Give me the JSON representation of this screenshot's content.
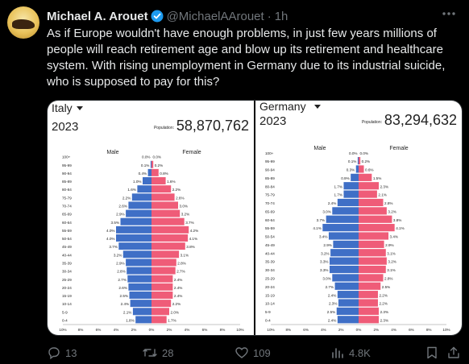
{
  "author": {
    "name": "Michael A. Arouet",
    "handle": "@MichaelAArouet",
    "time": "1h"
  },
  "tweet": {
    "text": "As if Europe wouldn't have enough problems, in just few years millions of people will reach retirement age and blow up its retirement and healthcare system. With rising unemployment in Germany due to its industrial suicide, who is supposed to pay for this?"
  },
  "actions": {
    "replies": "13",
    "reposts": "28",
    "likes": "109",
    "views": "4.8K"
  },
  "colors": {
    "male": "#3f6fc6",
    "female": "#ef5c78",
    "verified": "#1d9bf0"
  },
  "chart_data": [
    {
      "type": "bar",
      "country": "Italy",
      "year": "2023",
      "population_label": "Population:",
      "population": "58,870,762",
      "male_label": "Male",
      "female_label": "Female",
      "categories": [
        "100+",
        "95-99",
        "90-94",
        "85-89",
        "80-84",
        "75-79",
        "70-74",
        "65-69",
        "60-64",
        "55-59",
        "50-54",
        "45-49",
        "40-44",
        "35-39",
        "30-34",
        "25-29",
        "20-24",
        "15-19",
        "10-14",
        "5-9",
        "0-4"
      ],
      "x_ticks": [
        "10%",
        "8%",
        "6%",
        "4%",
        "2%",
        "0%",
        "2%",
        "4%",
        "6%",
        "8%",
        "10%"
      ],
      "series": [
        {
          "name": "Male",
          "values": [
            0.0,
            0.1,
            0.4,
            1.0,
            1.6,
            2.2,
            2.6,
            2.9,
            3.5,
            4.0,
            4.0,
            3.7,
            3.2,
            2.9,
            2.8,
            2.7,
            2.6,
            2.5,
            2.4,
            2.1,
            1.8
          ]
        },
        {
          "name": "Female",
          "values": [
            0.0,
            0.2,
            0.8,
            1.6,
            2.2,
            2.6,
            3.0,
            3.2,
            3.7,
            4.2,
            4.1,
            3.8,
            3.1,
            2.8,
            2.7,
            2.4,
            2.4,
            2.4,
            2.2,
            2.0,
            1.7
          ]
        }
      ],
      "xlim": [
        -10,
        10
      ]
    },
    {
      "type": "bar",
      "country": "Germany",
      "year": "2023",
      "population_label": "Population:",
      "population": "83,294,632",
      "male_label": "Male",
      "female_label": "Female",
      "categories": [
        "100+",
        "95-99",
        "90-94",
        "85-89",
        "80-84",
        "75-79",
        "70-74",
        "65-69",
        "60-64",
        "55-59",
        "50-54",
        "45-49",
        "40-44",
        "35-39",
        "30-34",
        "25-29",
        "20-24",
        "15-19",
        "10-14",
        "5-9",
        "0-4"
      ],
      "x_ticks": [
        "10%",
        "8%",
        "6%",
        "4%",
        "2%",
        "0%",
        "2%",
        "4%",
        "6%",
        "8%",
        "10%"
      ],
      "series": [
        {
          "name": "Male",
          "values": [
            0.0,
            0.1,
            0.3,
            0.9,
            1.7,
            1.7,
            2.4,
            3.0,
            3.7,
            4.1,
            3.4,
            2.9,
            3.2,
            3.3,
            3.3,
            3.0,
            2.7,
            2.4,
            2.3,
            2.5,
            2.4
          ]
        },
        {
          "name": "Female",
          "values": [
            0.0,
            0.2,
            0.6,
            1.5,
            2.3,
            2.1,
            2.8,
            3.2,
            3.8,
            4.1,
            3.4,
            2.9,
            3.1,
            3.2,
            3.1,
            2.8,
            2.5,
            2.2,
            2.2,
            2.3,
            2.3
          ]
        }
      ],
      "xlim": [
        -10,
        10
      ]
    }
  ]
}
